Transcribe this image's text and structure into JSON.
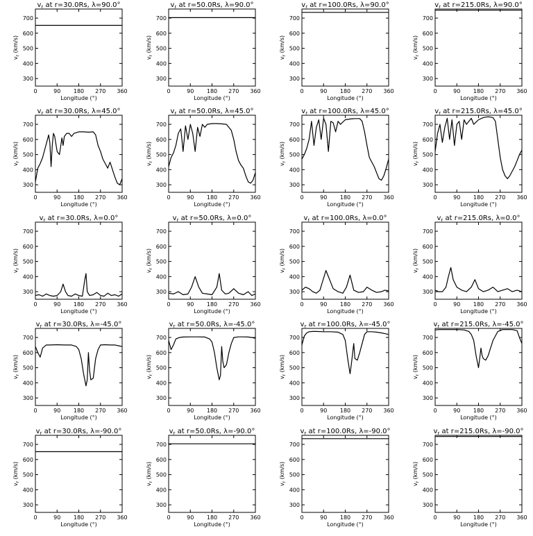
{
  "figure": {
    "xlabel": "Longitude (°)",
    "ylabel": "vr (km/s)",
    "xticks": [
      "0",
      "90",
      "180",
      "270",
      "360"
    ],
    "yticks": [
      "300",
      "400",
      "500",
      "600",
      "700"
    ]
  },
  "chart_data": [
    {
      "type": "line",
      "title": "vr at r=30.0Rs, λ=90.0°",
      "r_label": "30.0",
      "lat_label": "90.0",
      "xlabel": "Longitude (°)",
      "ylabel": "vr (km/s)",
      "xlim": [
        0,
        360
      ],
      "ylim": [
        250,
        760
      ],
      "x": [
        0,
        360
      ],
      "y": [
        652,
        652
      ]
    },
    {
      "type": "line",
      "title": "vr at r=50.0Rs, λ=90.0°",
      "r_label": "50.0",
      "lat_label": "90.0",
      "xlabel": "Longitude (°)",
      "ylabel": "vr (km/s)",
      "xlim": [
        0,
        360
      ],
      "ylim": [
        250,
        760
      ],
      "x": [
        0,
        360
      ],
      "y": [
        703,
        703
      ]
    },
    {
      "type": "line",
      "title": "vr at r=100.0Rs, λ=90.0°",
      "r_label": "100.0",
      "lat_label": "90.0",
      "xlabel": "Longitude (°)",
      "ylabel": "vr (km/s)",
      "xlim": [
        0,
        360
      ],
      "ylim": [
        250,
        760
      ],
      "x": [
        0,
        360
      ],
      "y": [
        738,
        738
      ]
    },
    {
      "type": "line",
      "title": "vr at r=215.0Rs, λ=90.0°",
      "r_label": "215.0",
      "lat_label": "90.0",
      "xlabel": "Longitude (°)",
      "ylabel": "vr (km/s)",
      "xlim": [
        0,
        360
      ],
      "ylim": [
        250,
        760
      ],
      "x": [
        0,
        360
      ],
      "y": [
        752,
        752
      ]
    },
    {
      "type": "line",
      "title": "vr at r=30.0Rs, λ=45.0°",
      "r_label": "30.0",
      "lat_label": "45.0",
      "xlabel": "Longitude (°)",
      "ylabel": "vr (km/s)",
      "xlim": [
        0,
        360
      ],
      "ylim": [
        250,
        760
      ],
      "x": [
        0,
        10,
        20,
        30,
        40,
        50,
        55,
        60,
        65,
        70,
        75,
        80,
        90,
        100,
        110,
        115,
        120,
        130,
        140,
        150,
        160,
        180,
        200,
        220,
        240,
        250,
        260,
        270,
        280,
        290,
        300,
        310,
        320,
        330,
        340,
        350,
        360
      ],
      "y": [
        320,
        410,
        440,
        480,
        540,
        600,
        630,
        580,
        420,
        560,
        640,
        620,
        520,
        500,
        610,
        560,
        620,
        640,
        640,
        620,
        640,
        650,
        650,
        648,
        650,
        630,
        560,
        520,
        470,
        440,
        410,
        450,
        400,
        350,
        310,
        300,
        340
      ]
    },
    {
      "type": "line",
      "title": "vr at r=50.0Rs, λ=45.0°",
      "r_label": "50.0",
      "lat_label": "45.0",
      "xlabel": "Longitude (°)",
      "ylabel": "vr (km/s)",
      "xlim": [
        0,
        360
      ],
      "ylim": [
        250,
        760
      ],
      "x": [
        0,
        10,
        20,
        30,
        40,
        50,
        55,
        60,
        70,
        80,
        90,
        100,
        110,
        120,
        130,
        140,
        150,
        160,
        180,
        200,
        220,
        240,
        260,
        270,
        280,
        290,
        300,
        310,
        320,
        330,
        340,
        350,
        360
      ],
      "y": [
        420,
        480,
        510,
        560,
        640,
        670,
        600,
        520,
        690,
        600,
        700,
        640,
        520,
        680,
        620,
        700,
        680,
        700,
        705,
        705,
        703,
        700,
        660,
        600,
        520,
        460,
        430,
        410,
        360,
        320,
        310,
        330,
        380
      ]
    },
    {
      "type": "line",
      "title": "vr at r=100.0Rs, λ=45.0°",
      "r_label": "100.0",
      "lat_label": "45.0",
      "xlabel": "Longitude (°)",
      "ylabel": "vr (km/s)",
      "xlim": [
        0,
        360
      ],
      "ylim": [
        250,
        760
      ],
      "x": [
        0,
        10,
        20,
        30,
        40,
        50,
        60,
        70,
        80,
        90,
        100,
        110,
        120,
        130,
        140,
        150,
        160,
        180,
        200,
        220,
        240,
        250,
        260,
        270,
        280,
        290,
        300,
        310,
        320,
        330,
        340,
        350,
        360
      ],
      "y": [
        470,
        500,
        540,
        600,
        720,
        560,
        680,
        730,
        600,
        740,
        700,
        520,
        720,
        710,
        650,
        720,
        700,
        730,
        735,
        738,
        738,
        720,
        650,
        560,
        480,
        450,
        420,
        380,
        340,
        330,
        360,
        410,
        470
      ]
    },
    {
      "type": "line",
      "title": "vr at r=215.0Rs, λ=45.0°",
      "r_label": "215.0",
      "lat_label": "45.0",
      "xlabel": "Longitude (°)",
      "ylabel": "vr (km/s)",
      "xlim": [
        0,
        360
      ],
      "ylim": [
        250,
        760
      ],
      "x": [
        0,
        10,
        20,
        30,
        40,
        50,
        60,
        70,
        80,
        90,
        100,
        110,
        120,
        130,
        140,
        150,
        160,
        180,
        200,
        220,
        240,
        250,
        260,
        270,
        280,
        290,
        300,
        310,
        320,
        330,
        340,
        350,
        360
      ],
      "y": [
        520,
        640,
        700,
        580,
        680,
        740,
        600,
        730,
        560,
        700,
        720,
        600,
        730,
        700,
        720,
        740,
        700,
        730,
        745,
        750,
        745,
        720,
        600,
        480,
        400,
        360,
        340,
        360,
        390,
        420,
        460,
        500,
        530
      ]
    },
    {
      "type": "line",
      "title": "vr at r=30.0Rs, λ=0.0°",
      "r_label": "30.0",
      "lat_label": "0.0",
      "xlabel": "Longitude (°)",
      "ylabel": "vr (km/s)",
      "xlim": [
        0,
        360
      ],
      "ylim": [
        250,
        760
      ],
      "x": [
        0,
        15,
        30,
        45,
        60,
        75,
        90,
        105,
        115,
        125,
        135,
        150,
        165,
        180,
        195,
        205,
        210,
        215,
        225,
        240,
        255,
        270,
        285,
        300,
        315,
        330,
        345,
        360
      ],
      "y": [
        275,
        280,
        270,
        285,
        275,
        270,
        275,
        300,
        350,
        300,
        275,
        270,
        285,
        275,
        270,
        380,
        420,
        300,
        275,
        280,
        295,
        275,
        270,
        290,
        275,
        280,
        270,
        285
      ]
    },
    {
      "type": "line",
      "title": "vr at r=50.0Rs, λ=0.0°",
      "r_label": "50.0",
      "lat_label": "0.0",
      "xlabel": "Longitude (°)",
      "ylabel": "vr (km/s)",
      "xlim": [
        0,
        360
      ],
      "ylim": [
        250,
        760
      ],
      "x": [
        0,
        20,
        40,
        60,
        80,
        95,
        110,
        125,
        140,
        160,
        180,
        200,
        210,
        220,
        235,
        250,
        270,
        290,
        310,
        330,
        345,
        360
      ],
      "y": [
        290,
        285,
        300,
        280,
        285,
        330,
        400,
        330,
        290,
        285,
        280,
        330,
        420,
        310,
        285,
        290,
        320,
        290,
        280,
        300,
        275,
        285
      ]
    },
    {
      "type": "line",
      "title": "vr at r=100.0Rs, λ=0.0°",
      "r_label": "100.0",
      "lat_label": "0.0",
      "xlabel": "Longitude (°)",
      "ylabel": "vr (km/s)",
      "xlim": [
        0,
        360
      ],
      "ylim": [
        250,
        760
      ],
      "x": [
        0,
        15,
        30,
        45,
        60,
        75,
        90,
        100,
        115,
        130,
        150,
        170,
        185,
        200,
        215,
        235,
        255,
        270,
        290,
        310,
        330,
        345,
        360
      ],
      "y": [
        310,
        330,
        320,
        300,
        290,
        310,
        390,
        440,
        380,
        320,
        300,
        290,
        330,
        410,
        310,
        295,
        300,
        330,
        310,
        295,
        300,
        310,
        305
      ]
    },
    {
      "type": "line",
      "title": "vr at r=215.0Rs, λ=0.0°",
      "r_label": "215.0",
      "lat_label": "0.0",
      "xlabel": "Longitude (°)",
      "ylabel": "vr (km/s)",
      "xlim": [
        0,
        360
      ],
      "ylim": [
        250,
        760
      ],
      "x": [
        0,
        15,
        30,
        45,
        55,
        65,
        75,
        90,
        110,
        130,
        150,
        165,
        180,
        200,
        220,
        240,
        260,
        280,
        300,
        320,
        340,
        360
      ],
      "y": [
        310,
        300,
        300,
        330,
        400,
        460,
        380,
        330,
        310,
        300,
        330,
        380,
        320,
        300,
        310,
        330,
        300,
        310,
        320,
        300,
        310,
        300
      ]
    },
    {
      "type": "line",
      "title": "vr at r=30.0Rs, λ=-45.0°",
      "r_label": "30.0",
      "lat_label": "-45.0",
      "xlabel": "Longitude (°)",
      "ylabel": "vr (km/s)",
      "xlim": [
        0,
        360
      ],
      "ylim": [
        250,
        760
      ],
      "x": [
        0,
        10,
        20,
        30,
        45,
        60,
        90,
        120,
        150,
        170,
        180,
        190,
        200,
        210,
        215,
        220,
        225,
        230,
        240,
        250,
        260,
        270,
        290,
        310,
        330,
        345,
        360
      ],
      "y": [
        640,
        600,
        570,
        630,
        650,
        650,
        652,
        650,
        650,
        640,
        620,
        560,
        460,
        380,
        420,
        600,
        480,
        420,
        430,
        560,
        620,
        650,
        652,
        650,
        650,
        645,
        640
      ]
    },
    {
      "type": "line",
      "title": "vr at r=50.0Rs, λ=-45.0°",
      "r_label": "50.0",
      "lat_label": "-45.0",
      "xlabel": "Longitude (°)",
      "ylabel": "vr (km/s)",
      "xlim": [
        0,
        360
      ],
      "ylim": [
        250,
        760
      ],
      "x": [
        0,
        10,
        20,
        30,
        45,
        60,
        90,
        120,
        150,
        170,
        180,
        190,
        200,
        210,
        215,
        220,
        225,
        230,
        240,
        250,
        260,
        270,
        290,
        310,
        330,
        345,
        360
      ],
      "y": [
        680,
        620,
        650,
        690,
        700,
        703,
        704,
        704,
        703,
        690,
        670,
        600,
        500,
        420,
        450,
        640,
        540,
        500,
        520,
        600,
        660,
        700,
        704,
        704,
        703,
        700,
        695
      ]
    },
    {
      "type": "line",
      "title": "vr at r=100.0Rs, λ=-45.0°",
      "r_label": "100.0",
      "lat_label": "-45.0",
      "xlabel": "Longitude (°)",
      "ylabel": "vr (km/s)",
      "xlim": [
        0,
        360
      ],
      "ylim": [
        250,
        760
      ],
      "x": [
        0,
        10,
        20,
        30,
        45,
        60,
        90,
        120,
        150,
        170,
        180,
        190,
        200,
        205,
        215,
        220,
        230,
        240,
        250,
        260,
        270,
        290,
        310,
        330,
        345,
        360
      ],
      "y": [
        650,
        710,
        730,
        738,
        740,
        740,
        738,
        738,
        735,
        720,
        680,
        560,
        460,
        520,
        660,
        560,
        550,
        600,
        660,
        720,
        738,
        738,
        735,
        730,
        725,
        720
      ]
    },
    {
      "type": "line",
      "title": "vr at r=215.0Rs, λ=-45.0°",
      "r_label": "215.0",
      "lat_label": "-45.0",
      "xlabel": "Longitude (°)",
      "ylabel": "vr (km/s)",
      "xlim": [
        0,
        360
      ],
      "ylim": [
        250,
        760
      ],
      "x": [
        0,
        20,
        40,
        60,
        90,
        120,
        140,
        150,
        160,
        170,
        180,
        185,
        190,
        195,
        200,
        210,
        220,
        240,
        260,
        280,
        300,
        320,
        340,
        350,
        360
      ],
      "y": [
        750,
        752,
        752,
        752,
        752,
        750,
        740,
        720,
        680,
        580,
        500,
        560,
        630,
        580,
        560,
        550,
        580,
        680,
        740,
        752,
        752,
        752,
        745,
        700,
        660
      ]
    },
    {
      "type": "line",
      "title": "vr at r=30.0Rs, λ=-90.0°",
      "r_label": "30.0",
      "lat_label": "-90.0",
      "xlabel": "Longitude (°)",
      "ylabel": "vr (km/s)",
      "xlim": [
        0,
        360
      ],
      "ylim": [
        250,
        760
      ],
      "x": [
        0,
        360
      ],
      "y": [
        652,
        652
      ]
    },
    {
      "type": "line",
      "title": "vr at r=50.0Rs, λ=-90.0°",
      "r_label": "50.0",
      "lat_label": "-90.0",
      "xlabel": "Longitude (°)",
      "ylabel": "vr (km/s)",
      "xlim": [
        0,
        360
      ],
      "ylim": [
        250,
        760
      ],
      "x": [
        0,
        360
      ],
      "y": [
        704,
        704
      ]
    },
    {
      "type": "line",
      "title": "vr at r=100.0Rs, λ=-90.0°",
      "r_label": "100.0",
      "lat_label": "-90.0",
      "xlabel": "Longitude (°)",
      "ylabel": "vr (km/s)",
      "xlim": [
        0,
        360
      ],
      "ylim": [
        250,
        760
      ],
      "x": [
        0,
        360
      ],
      "y": [
        738,
        738
      ]
    },
    {
      "type": "line",
      "title": "vr at r=215.0Rs, λ=-90.0°",
      "r_label": "215.0",
      "lat_label": "-90.0",
      "xlabel": "Longitude (°)",
      "ylabel": "vr (km/s)",
      "xlim": [
        0,
        360
      ],
      "ylim": [
        250,
        760
      ],
      "x": [
        0,
        360
      ],
      "y": [
        752,
        752
      ]
    }
  ]
}
